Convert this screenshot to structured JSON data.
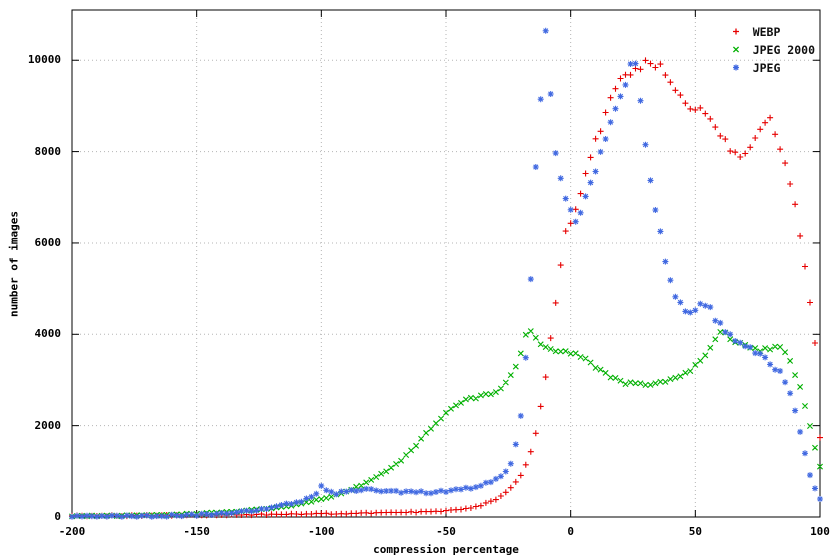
{
  "chart_data": {
    "type": "scatter",
    "title": "",
    "xlabel": "compression percentage",
    "ylabel": "number of images",
    "xlim": [
      -200,
      100
    ],
    "ylim": [
      0,
      11100
    ],
    "xticks": [
      -200,
      -150,
      -100,
      -50,
      0,
      50,
      100
    ],
    "yticks": [
      0,
      2000,
      4000,
      6000,
      8000,
      10000
    ],
    "grid": true,
    "legend_position": "top-right-inside",
    "series": [
      {
        "name": "WEBP",
        "color": "#e60000",
        "marker": "plus",
        "points": [
          [
            -200,
            25
          ],
          [
            -190,
            25
          ],
          [
            -180,
            30
          ],
          [
            -170,
            30
          ],
          [
            -160,
            35
          ],
          [
            -150,
            40
          ],
          [
            -140,
            45
          ],
          [
            -130,
            50
          ],
          [
            -120,
            55
          ],
          [
            -110,
            60
          ],
          [
            -100,
            70
          ],
          [
            -90,
            75
          ],
          [
            -80,
            85
          ],
          [
            -70,
            95
          ],
          [
            -60,
            110
          ],
          [
            -55,
            120
          ],
          [
            -50,
            135
          ],
          [
            -45,
            160
          ],
          [
            -40,
            200
          ],
          [
            -36,
            260
          ],
          [
            -32,
            340
          ],
          [
            -28,
            450
          ],
          [
            -24,
            630
          ],
          [
            -20,
            920
          ],
          [
            -18,
            1150
          ],
          [
            -16,
            1450
          ],
          [
            -14,
            1850
          ],
          [
            -12,
            2400
          ],
          [
            -10,
            3100
          ],
          [
            -8,
            3900
          ],
          [
            -6,
            4700
          ],
          [
            -4,
            5500
          ],
          [
            -2,
            6200
          ],
          [
            0,
            6500
          ],
          [
            2,
            6800
          ],
          [
            4,
            7100
          ],
          [
            6,
            7500
          ],
          [
            8,
            7900
          ],
          [
            10,
            8200
          ],
          [
            12,
            8500
          ],
          [
            14,
            8800
          ],
          [
            16,
            9100
          ],
          [
            18,
            9350
          ],
          [
            20,
            9550
          ],
          [
            22,
            9650
          ],
          [
            24,
            9750
          ],
          [
            26,
            9820
          ],
          [
            28,
            9870
          ],
          [
            30,
            9900
          ],
          [
            32,
            9970
          ],
          [
            34,
            9900
          ],
          [
            36,
            9820
          ],
          [
            38,
            9680
          ],
          [
            40,
            9500
          ],
          [
            42,
            9350
          ],
          [
            44,
            9200
          ],
          [
            46,
            9100
          ],
          [
            48,
            9000
          ],
          [
            50,
            8950
          ],
          [
            52,
            8900
          ],
          [
            54,
            8850
          ],
          [
            56,
            8720
          ],
          [
            58,
            8570
          ],
          [
            60,
            8400
          ],
          [
            62,
            8220
          ],
          [
            64,
            8080
          ],
          [
            66,
            7970
          ],
          [
            68,
            7900
          ],
          [
            70,
            7980
          ],
          [
            72,
            8150
          ],
          [
            74,
            8350
          ],
          [
            76,
            8550
          ],
          [
            78,
            8690
          ],
          [
            80,
            8700
          ],
          [
            82,
            8450
          ],
          [
            84,
            8120
          ],
          [
            86,
            7750
          ],
          [
            88,
            7300
          ],
          [
            90,
            6800
          ],
          [
            92,
            6150
          ],
          [
            94,
            5450
          ],
          [
            96,
            4650
          ],
          [
            98,
            3850
          ],
          [
            99,
            2900
          ],
          [
            100,
            1750
          ]
        ]
      },
      {
        "name": "JPEG 2000",
        "color": "#00b000",
        "marker": "cross",
        "points": [
          [
            -200,
            20
          ],
          [
            -190,
            25
          ],
          [
            -180,
            30
          ],
          [
            -170,
            40
          ],
          [
            -160,
            55
          ],
          [
            -150,
            75
          ],
          [
            -140,
            100
          ],
          [
            -130,
            140
          ],
          [
            -120,
            190
          ],
          [
            -110,
            270
          ],
          [
            -100,
            390
          ],
          [
            -95,
            460
          ],
          [
            -90,
            560
          ],
          [
            -85,
            670
          ],
          [
            -80,
            810
          ],
          [
            -75,
            960
          ],
          [
            -70,
            1150
          ],
          [
            -65,
            1400
          ],
          [
            -60,
            1700
          ],
          [
            -55,
            2000
          ],
          [
            -50,
            2300
          ],
          [
            -46,
            2450
          ],
          [
            -42,
            2550
          ],
          [
            -38,
            2620
          ],
          [
            -34,
            2680
          ],
          [
            -30,
            2760
          ],
          [
            -28,
            2820
          ],
          [
            -26,
            2950
          ],
          [
            -24,
            3100
          ],
          [
            -22,
            3300
          ],
          [
            -20,
            3600
          ],
          [
            -18,
            3950
          ],
          [
            -17,
            4100
          ],
          [
            -16,
            4050
          ],
          [
            -14,
            3900
          ],
          [
            -12,
            3800
          ],
          [
            -10,
            3700
          ],
          [
            -8,
            3650
          ],
          [
            -6,
            3600
          ],
          [
            -4,
            3600
          ],
          [
            -2,
            3620
          ],
          [
            0,
            3600
          ],
          [
            2,
            3580
          ],
          [
            4,
            3520
          ],
          [
            6,
            3450
          ],
          [
            8,
            3380
          ],
          [
            10,
            3300
          ],
          [
            12,
            3220
          ],
          [
            14,
            3130
          ],
          [
            16,
            3060
          ],
          [
            18,
            3010
          ],
          [
            20,
            2960
          ],
          [
            24,
            2920
          ],
          [
            28,
            2900
          ],
          [
            32,
            2900
          ],
          [
            36,
            2950
          ],
          [
            40,
            3000
          ],
          [
            44,
            3080
          ],
          [
            48,
            3200
          ],
          [
            50,
            3300
          ],
          [
            52,
            3430
          ],
          [
            54,
            3570
          ],
          [
            56,
            3720
          ],
          [
            58,
            3880
          ],
          [
            60,
            4050
          ],
          [
            62,
            4000
          ],
          [
            64,
            3920
          ],
          [
            66,
            3860
          ],
          [
            68,
            3810
          ],
          [
            70,
            3760
          ],
          [
            72,
            3710
          ],
          [
            74,
            3680
          ],
          [
            76,
            3650
          ],
          [
            78,
            3660
          ],
          [
            80,
            3700
          ],
          [
            82,
            3740
          ],
          [
            84,
            3700
          ],
          [
            86,
            3600
          ],
          [
            88,
            3420
          ],
          [
            90,
            3130
          ],
          [
            92,
            2820
          ],
          [
            94,
            2420
          ],
          [
            96,
            2000
          ],
          [
            98,
            1520
          ],
          [
            100,
            1100
          ]
        ]
      },
      {
        "name": "JPEG",
        "color": "#4169e1",
        "marker": "asterisk",
        "points": [
          [
            -200,
            10
          ],
          [
            -190,
            10
          ],
          [
            -180,
            15
          ],
          [
            -170,
            20
          ],
          [
            -160,
            30
          ],
          [
            -150,
            45
          ],
          [
            -140,
            70
          ],
          [
            -130,
            120
          ],
          [
            -120,
            200
          ],
          [
            -115,
            260
          ],
          [
            -110,
            320
          ],
          [
            -105,
            400
          ],
          [
            -102,
            520
          ],
          [
            -100,
            680
          ],
          [
            -98,
            560
          ],
          [
            -95,
            520
          ],
          [
            -90,
            545
          ],
          [
            -85,
            585
          ],
          [
            -82,
            640
          ],
          [
            -80,
            600
          ],
          [
            -75,
            560
          ],
          [
            -70,
            545
          ],
          [
            -65,
            540
          ],
          [
            -60,
            545
          ],
          [
            -55,
            550
          ],
          [
            -50,
            555
          ],
          [
            -45,
            590
          ],
          [
            -40,
            640
          ],
          [
            -35,
            700
          ],
          [
            -30,
            810
          ],
          [
            -28,
            890
          ],
          [
            -26,
            990
          ],
          [
            -24,
            1180
          ],
          [
            -22,
            1550
          ],
          [
            -20,
            2200
          ],
          [
            -19,
            2800
          ],
          [
            -18,
            3500
          ],
          [
            -17,
            4300
          ],
          [
            -16,
            5300
          ],
          [
            -15,
            6400
          ],
          [
            -14,
            7600
          ],
          [
            -13,
            8400
          ],
          [
            -12,
            9200
          ],
          [
            -11,
            9800
          ],
          [
            -10,
            10750
          ],
          [
            -9,
            10300
          ],
          [
            -8,
            9400
          ],
          [
            -7,
            8600
          ],
          [
            -6,
            8100
          ],
          [
            -5,
            7800
          ],
          [
            -4,
            7500
          ],
          [
            -3,
            7200
          ],
          [
            -2,
            7000
          ],
          [
            -1,
            6900
          ],
          [
            0,
            6850
          ],
          [
            1,
            6700
          ],
          [
            2,
            6500
          ],
          [
            3,
            6450
          ],
          [
            4,
            6550
          ],
          [
            5,
            6800
          ],
          [
            6,
            7000
          ],
          [
            8,
            7300
          ],
          [
            10,
            7600
          ],
          [
            12,
            7900
          ],
          [
            14,
            8200
          ],
          [
            16,
            8500
          ],
          [
            18,
            8800
          ],
          [
            20,
            9200
          ],
          [
            22,
            9600
          ],
          [
            24,
            9950
          ],
          [
            25,
            10050
          ],
          [
            26,
            9900
          ],
          [
            27,
            9500
          ],
          [
            28,
            9100
          ],
          [
            29,
            8700
          ],
          [
            30,
            8300
          ],
          [
            31,
            7900
          ],
          [
            32,
            7500
          ],
          [
            33,
            7100
          ],
          [
            34,
            6800
          ],
          [
            35,
            6500
          ],
          [
            36,
            6200
          ],
          [
            38,
            5600
          ],
          [
            40,
            5200
          ],
          [
            42,
            4900
          ],
          [
            44,
            4700
          ],
          [
            46,
            4550
          ],
          [
            48,
            4450
          ],
          [
            50,
            4500
          ],
          [
            52,
            4680
          ],
          [
            54,
            4650
          ],
          [
            56,
            4520
          ],
          [
            58,
            4350
          ],
          [
            60,
            4180
          ],
          [
            62,
            4050
          ],
          [
            64,
            3950
          ],
          [
            66,
            3850
          ],
          [
            68,
            3780
          ],
          [
            70,
            3720
          ],
          [
            72,
            3670
          ],
          [
            74,
            3620
          ],
          [
            76,
            3550
          ],
          [
            78,
            3480
          ],
          [
            80,
            3380
          ],
          [
            82,
            3270
          ],
          [
            84,
            3130
          ],
          [
            86,
            2950
          ],
          [
            88,
            2650
          ],
          [
            90,
            2300
          ],
          [
            92,
            1900
          ],
          [
            94,
            1400
          ],
          [
            96,
            950
          ],
          [
            98,
            600
          ],
          [
            100,
            420
          ]
        ]
      }
    ]
  }
}
